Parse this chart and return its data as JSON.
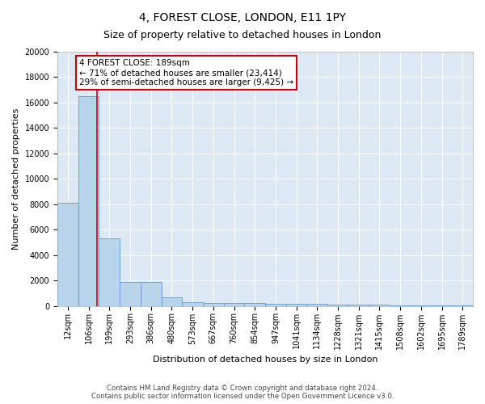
{
  "title": "4, FOREST CLOSE, LONDON, E11 1PY",
  "subtitle": "Size of property relative to detached houses in London",
  "xlabel": "Distribution of detached houses by size in London",
  "ylabel": "Number of detached properties",
  "bar_edges": [
    12,
    106,
    199,
    293,
    386,
    480,
    573,
    667,
    760,
    854,
    947,
    1041,
    1134,
    1228,
    1321,
    1415,
    1508,
    1602,
    1695,
    1789,
    1882
  ],
  "bar_heights": [
    8100,
    16500,
    5300,
    1850,
    1850,
    700,
    300,
    225,
    210,
    200,
    180,
    150,
    130,
    110,
    90,
    75,
    60,
    50,
    40,
    30
  ],
  "bar_color": "#b8d4ea",
  "bar_edge_color": "#6699cc",
  "vline_x": 189,
  "vline_color": "#cc0000",
  "annotation_text": "4 FOREST CLOSE: 189sqm\n← 71% of detached houses are smaller (23,414)\n29% of semi-detached houses are larger (9,425) →",
  "annotation_box_color": "#ffffff",
  "annotation_box_edge_color": "#cc0000",
  "ylim": [
    0,
    20000
  ],
  "yticks": [
    0,
    2000,
    4000,
    6000,
    8000,
    10000,
    12000,
    14000,
    16000,
    18000,
    20000
  ],
  "bg_color": "#dde8f5",
  "footnote": "Contains HM Land Registry data © Crown copyright and database right 2024.\nContains public sector information licensed under the Open Government Licence v3.0.",
  "title_fontsize": 10,
  "subtitle_fontsize": 9,
  "axis_label_fontsize": 8,
  "tick_fontsize": 7,
  "annotation_fontsize": 7.5
}
